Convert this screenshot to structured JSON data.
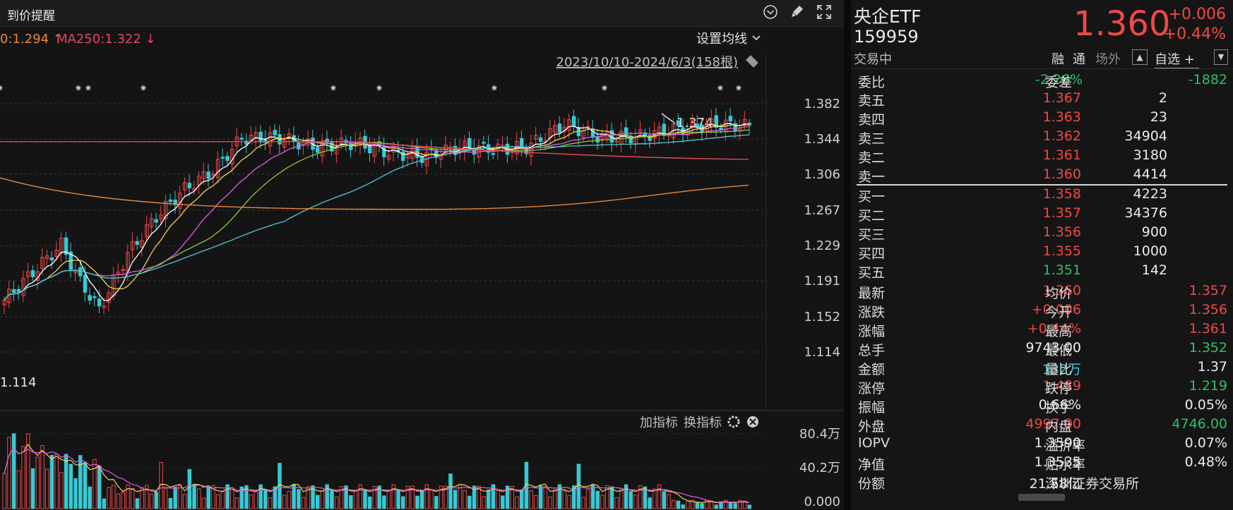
{
  "topbar": {
    "title": "到价提醒"
  },
  "chart": {
    "ma_legend_1": "0:1.294 ↑",
    "ma_legend_2": "MA250:1.322 ↓",
    "ma_settings": "设置均线",
    "range_label": "2023/10/10-2024/6/3(158根)",
    "price_ticks": [
      "1.382",
      "1.344",
      "1.306",
      "1.267",
      "1.229",
      "1.191",
      "1.152",
      "1.114"
    ],
    "low_label": "1.114",
    "high_label": "1.374",
    "vol_add": "加指标",
    "vol_switch": "换指标",
    "vol_ticks": [
      "80.4万",
      "40.2万",
      "0.000"
    ],
    "colors": {
      "up": "#f04848",
      "down": "#36c9d3",
      "ma5": "#ffffff",
      "ma10": "#f3d35a",
      "ma20": "#e05ce6",
      "ma30": "#90c93a",
      "ma60": "#55c7d2",
      "ma120": "#e8873a",
      "ma250": "#e0485d"
    }
  },
  "quote": {
    "name": "央企ETF",
    "code": "159959",
    "status": "交易中",
    "price": "1.360",
    "change": "+0.006",
    "change_pct": "+0.44%",
    "tags": [
      "融",
      "通",
      "场外"
    ],
    "favorite": "自选 +"
  },
  "orderbook": {
    "weibi_label": "委比",
    "weibi": "-2.26%",
    "weicha_label": "委差",
    "weicha": "-1882",
    "asks": [
      {
        "label": "卖五",
        "price": "1.367",
        "vol": "2"
      },
      {
        "label": "卖四",
        "price": "1.363",
        "vol": "23"
      },
      {
        "label": "卖三",
        "price": "1.362",
        "vol": "34904"
      },
      {
        "label": "卖二",
        "price": "1.361",
        "vol": "3180"
      },
      {
        "label": "卖一",
        "price": "1.360",
        "vol": "4414"
      }
    ],
    "bids": [
      {
        "label": "买一",
        "price": "1.358",
        "vol": "4223"
      },
      {
        "label": "买二",
        "price": "1.357",
        "vol": "34376"
      },
      {
        "label": "买三",
        "price": "1.356",
        "vol": "900"
      },
      {
        "label": "买四",
        "price": "1.355",
        "vol": "1000"
      },
      {
        "label": "买五",
        "price": "1.351",
        "vol": "142"
      }
    ]
  },
  "stats": [
    {
      "l1": "最新",
      "v1": "1.360",
      "c1": "red",
      "l2": "均价",
      "v2": "1.357",
      "c2": "red"
    },
    {
      "l1": "涨跌",
      "v1": "+0.006",
      "c1": "red",
      "l2": "今开",
      "v2": "1.356",
      "c2": "red"
    },
    {
      "l1": "涨幅",
      "v1": "+0.44%",
      "c1": "red",
      "l2": "最高",
      "v2": "1.361",
      "c2": "red"
    },
    {
      "l1": "总手",
      "v1": "9743.00",
      "c1": "white",
      "l2": "最低",
      "v2": "1.352",
      "c2": "green"
    },
    {
      "l1": "金额",
      "v1": "132万",
      "c1": "cyan",
      "l2": "量比",
      "v2": "1.37",
      "c2": "white"
    },
    {
      "l1": "涨停",
      "v1": "1.489",
      "c1": "red",
      "l2": "跌停",
      "v2": "1.219",
      "c2": "green"
    },
    {
      "l1": "振幅",
      "v1": "0.66%",
      "c1": "white",
      "l2": "换手",
      "v2": "0.05%",
      "c2": "white"
    },
    {
      "l1": "外盘",
      "v1": "4997.00",
      "c1": "red",
      "l2": "内盘",
      "v2": "4746.00",
      "c2": "green"
    },
    {
      "l1": "IOPV",
      "v1": "1.3590",
      "c1": "white",
      "l2": "溢折率",
      "v2": "0.07%",
      "c2": "white"
    },
    {
      "l1": "净值",
      "v1": "1.3535",
      "c1": "white",
      "l2": "贴水率",
      "v2": "0.48%",
      "c2": "white"
    },
    {
      "l1": "份额",
      "v1": "21.58亿",
      "c1": "white",
      "l2": "深圳证券交易所",
      "v2": "",
      "c2": "white"
    }
  ]
}
